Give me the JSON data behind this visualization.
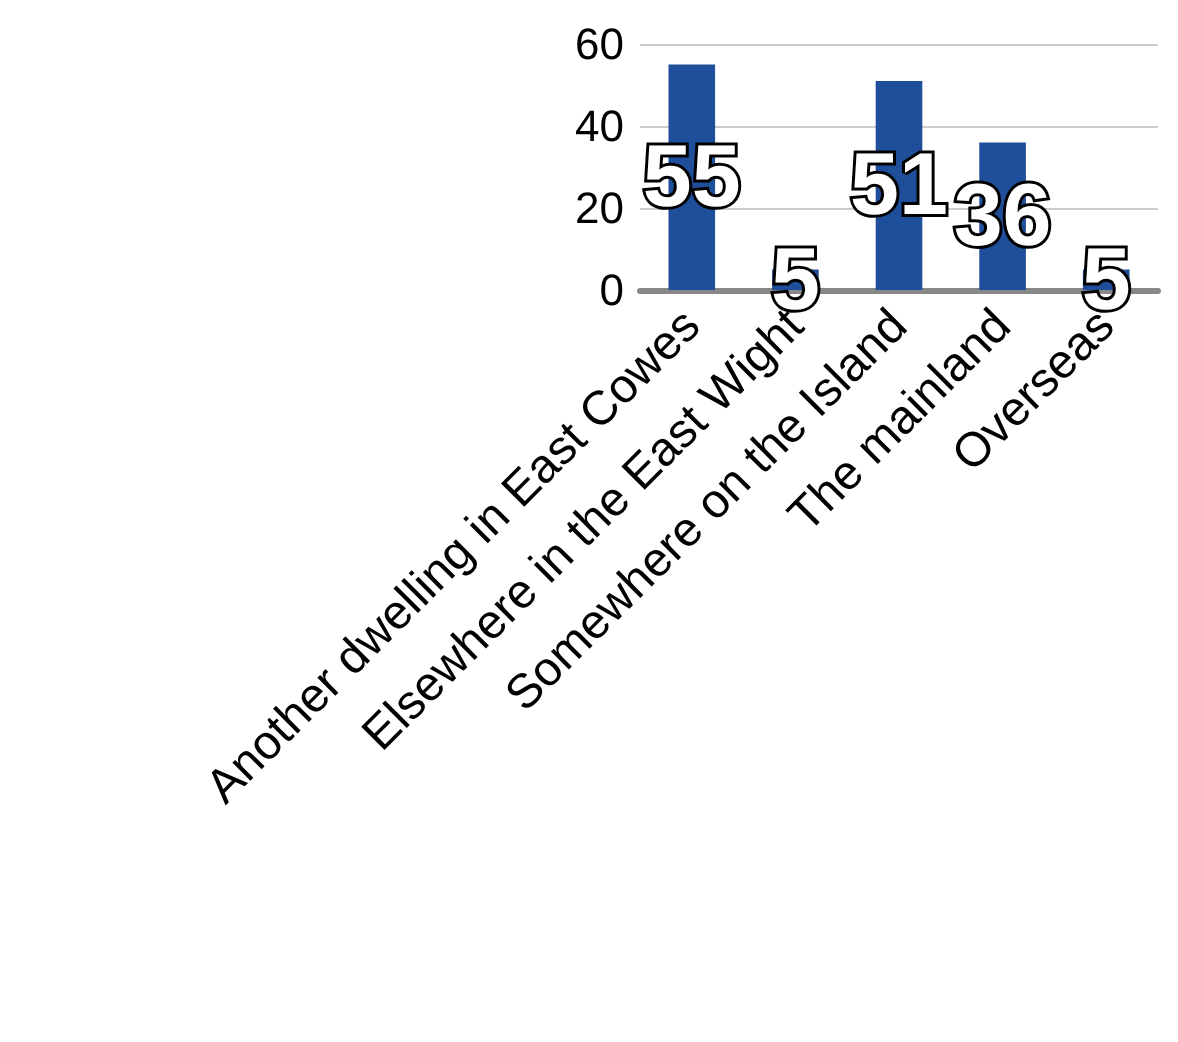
{
  "chart_data": {
    "type": "bar",
    "categories": [
      "Another dwelling in East Cowes",
      "Elsewhere in the East Wight",
      "Somewhere on the Island",
      "The mainland",
      "Overseas"
    ],
    "values": [
      55,
      5,
      51,
      36,
      5
    ],
    "color": "#1f4e9a",
    "ylim": [
      0,
      60
    ],
    "yticks": [
      0,
      20,
      40,
      60
    ],
    "grid": "y",
    "data_labels": true
  }
}
